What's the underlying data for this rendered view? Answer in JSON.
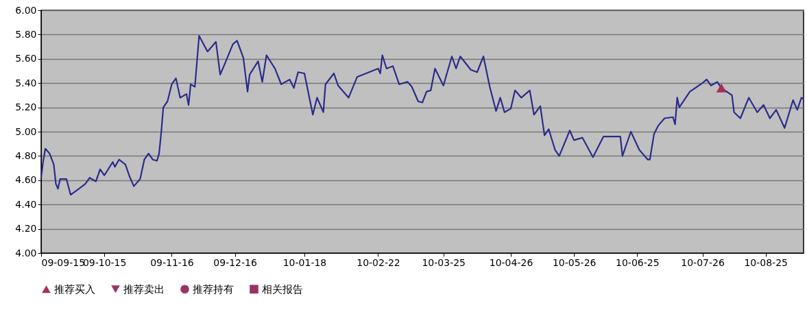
{
  "chart_data": {
    "type": "line",
    "xlim": [
      "2009-09-15",
      "2010-09-12"
    ],
    "xticks": [
      {
        "value": "2009-09-15",
        "label": "09-09-15"
      },
      {
        "value": "2009-10-15",
        "label": "09-10-15"
      },
      {
        "value": "2009-11-16",
        "label": "09-11-16"
      },
      {
        "value": "2009-12-16",
        "label": "09-12-16"
      },
      {
        "value": "2010-01-18",
        "label": "10-01-18"
      },
      {
        "value": "2010-02-22",
        "label": "10-02-22"
      },
      {
        "value": "2010-03-25",
        "label": "10-03-25"
      },
      {
        "value": "2010-04-26",
        "label": "10-04-26"
      },
      {
        "value": "2010-05-26",
        "label": "10-05-26"
      },
      {
        "value": "2010-06-25",
        "label": "10-06-25"
      },
      {
        "value": "2010-07-26",
        "label": "10-07-26"
      },
      {
        "value": "2010-08-25",
        "label": "10-08-25"
      }
    ],
    "ylim": [
      4,
      6
    ],
    "yticks": [
      {
        "value": 4,
        "label": "4.00"
      },
      {
        "value": 4.2,
        "label": "4.20"
      },
      {
        "value": 4.4,
        "label": "4.40"
      },
      {
        "value": 4.6,
        "label": "4.60"
      },
      {
        "value": 4.8,
        "label": "4.80"
      },
      {
        "value": 5,
        "label": "5.00"
      },
      {
        "value": 5.2,
        "label": "5.20"
      },
      {
        "value": 5.4,
        "label": "5.40"
      },
      {
        "value": 5.6,
        "label": "5.60"
      },
      {
        "value": 5.8,
        "label": "5.80"
      },
      {
        "value": 6,
        "label": "6.00"
      }
    ],
    "grid": "y",
    "legend": "bottom",
    "line_style": "solid",
    "series": [
      {
        "color": "#2b2b8c",
        "marker": "none",
        "x": [
          "2009-09-15",
          "2009-09-16",
          "2009-09-17",
          "2009-09-19",
          "2009-09-21",
          "2009-09-22",
          "2009-09-23",
          "2009-09-24",
          "2009-09-27",
          "2009-09-29",
          "2009-10-03",
          "2009-10-06",
          "2009-10-08",
          "2009-10-11",
          "2009-10-13",
          "2009-10-15",
          "2009-10-19",
          "2009-10-20",
          "2009-10-22",
          "2009-10-25",
          "2009-10-27",
          "2009-10-29",
          "2009-11-01",
          "2009-11-03",
          "2009-11-05",
          "2009-11-07",
          "2009-11-09",
          "2009-11-10",
          "2009-11-11",
          "2009-11-12",
          "2009-11-14",
          "2009-11-16",
          "2009-11-18",
          "2009-11-20",
          "2009-11-23",
          "2009-11-24",
          "2009-11-25",
          "2009-11-27",
          "2009-11-29",
          "2009-12-03",
          "2009-12-07",
          "2009-12-09",
          "2009-12-11",
          "2009-12-15",
          "2009-12-17",
          "2009-12-20",
          "2009-12-22",
          "2009-12-23",
          "2009-12-27",
          "2009-12-29",
          "2009-12-31",
          "2010-01-04",
          "2010-01-07",
          "2010-01-11",
          "2010-01-13",
          "2010-01-15",
          "2010-01-18",
          "2010-01-22",
          "2010-01-24",
          "2010-01-27",
          "2010-01-28",
          "2010-02-01",
          "2010-02-03",
          "2010-02-08",
          "2010-02-12",
          "2010-02-22",
          "2010-02-23",
          "2010-02-24",
          "2010-02-26",
          "2010-03-01",
          "2010-03-04",
          "2010-03-08",
          "2010-03-10",
          "2010-03-13",
          "2010-03-15",
          "2010-03-17",
          "2010-03-19",
          "2010-03-21",
          "2010-03-25",
          "2010-03-29",
          "2010-03-31",
          "2010-04-02",
          "2010-04-07",
          "2010-04-10",
          "2010-04-13",
          "2010-04-16",
          "2010-04-19",
          "2010-04-21",
          "2010-04-23",
          "2010-04-26",
          "2010-04-28",
          "2010-05-01",
          "2010-05-05",
          "2010-05-07",
          "2010-05-10",
          "2010-05-12",
          "2010-05-14",
          "2010-05-17",
          "2010-05-19",
          "2010-05-24",
          "2010-05-26",
          "2010-05-30",
          "2010-06-04",
          "2010-06-09",
          "2010-06-17",
          "2010-06-18",
          "2010-06-22",
          "2010-06-26",
          "2010-06-30",
          "2010-07-01",
          "2010-07-03",
          "2010-07-05",
          "2010-07-08",
          "2010-07-12",
          "2010-07-13",
          "2010-07-14",
          "2010-07-15",
          "2010-07-20",
          "2010-07-26",
          "2010-07-28",
          "2010-07-30",
          "2010-08-02",
          "2010-08-04",
          "2010-08-09",
          "2010-08-10",
          "2010-08-13",
          "2010-08-17",
          "2010-08-21",
          "2010-08-24",
          "2010-08-27",
          "2010-08-30",
          "2010-09-03",
          "2010-09-07",
          "2010-09-09",
          "2010-09-11",
          "2010-09-12"
        ],
        "values": [
          4.62,
          4.76,
          4.86,
          4.82,
          4.73,
          4.57,
          4.53,
          4.61,
          4.61,
          4.48,
          4.53,
          4.57,
          4.62,
          4.59,
          4.69,
          4.64,
          4.75,
          4.71,
          4.77,
          4.73,
          4.63,
          4.55,
          4.61,
          4.77,
          4.82,
          4.77,
          4.76,
          4.82,
          4.99,
          5.2,
          5.25,
          5.39,
          5.44,
          5.28,
          5.31,
          5.22,
          5.39,
          5.37,
          5.79,
          5.66,
          5.74,
          5.47,
          5.55,
          5.72,
          5.75,
          5.61,
          5.33,
          5.47,
          5.58,
          5.41,
          5.63,
          5.52,
          5.39,
          5.43,
          5.36,
          5.49,
          5.48,
          5.14,
          5.28,
          5.16,
          5.39,
          5.48,
          5.38,
          5.28,
          5.45,
          5.52,
          5.48,
          5.63,
          5.52,
          5.54,
          5.39,
          5.41,
          5.37,
          5.25,
          5.24,
          5.33,
          5.34,
          5.52,
          5.38,
          5.62,
          5.52,
          5.62,
          5.51,
          5.49,
          5.62,
          5.37,
          5.17,
          5.28,
          5.16,
          5.19,
          5.34,
          5.28,
          5.34,
          5.14,
          5.21,
          4.97,
          5.02,
          4.85,
          4.8,
          5.01,
          4.93,
          4.95,
          4.79,
          4.96,
          4.96,
          4.8,
          5.0,
          4.85,
          4.77,
          4.77,
          4.98,
          5.05,
          5.11,
          5.12,
          5.06,
          5.28,
          5.2,
          5.33,
          5.4,
          5.43,
          5.38,
          5.41,
          5.36,
          5.3,
          5.16,
          5.11,
          5.28,
          5.16,
          5.22,
          5.11,
          5.18,
          5.03,
          5.26,
          5.18,
          5.28,
          5.27
        ]
      },
      {
        "type": "scatter",
        "name": "推荐买入",
        "color": "#a3305f",
        "marker": "triangle",
        "x": [
          "2010-08-04"
        ],
        "values": [
          5.36
        ]
      },
      {
        "type": "scatter",
        "name": "推荐卖出",
        "color": "#993366",
        "marker": "triangle-down"
      },
      {
        "type": "scatter",
        "name": "推荐持有",
        "color": "#993366",
        "marker": "circle"
      },
      {
        "type": "scatter",
        "name": "相关报告",
        "color": "#993366",
        "marker": "square"
      }
    ]
  }
}
